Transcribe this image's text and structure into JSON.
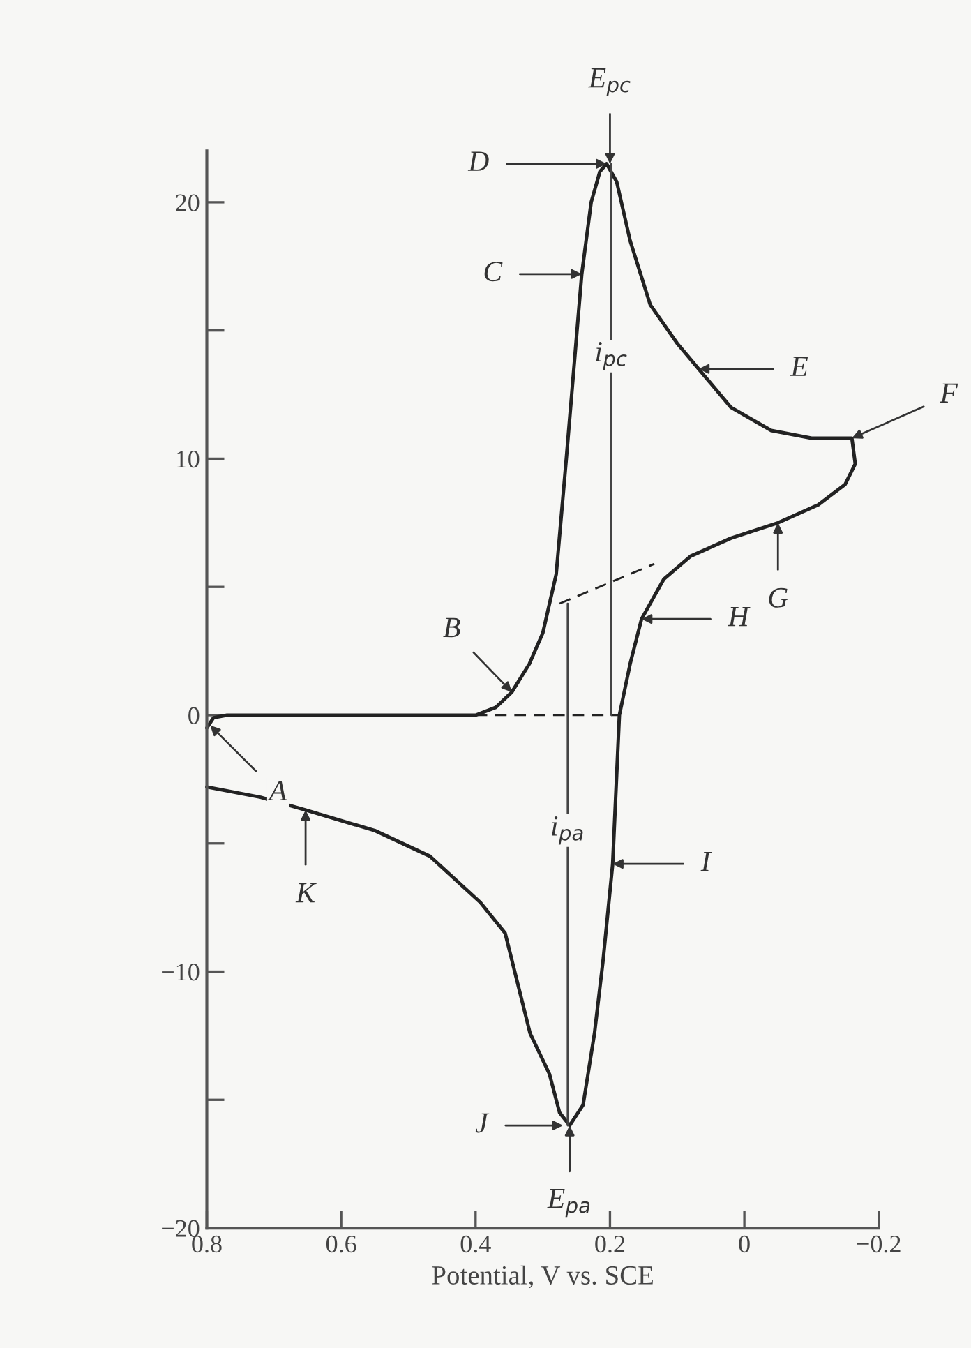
{
  "chart_data": {
    "type": "line",
    "xlabel": "Potential, V vs. SCE",
    "xlim": [
      0.8,
      -0.2
    ],
    "xticks": [
      0.8,
      0.6,
      0.4,
      0.2,
      0,
      {
        "value": -0.2,
        "label": "−0.2"
      }
    ],
    "ylim": [
      -20,
      22
    ],
    "yticks": [
      {
        "value": -20,
        "label": "−20"
      },
      {
        "value": -15,
        "label": null
      },
      {
        "value": -10,
        "label": "−10"
      },
      {
        "value": -5,
        "label": null
      },
      0,
      {
        "value": 5,
        "label": null
      },
      10,
      {
        "value": 15,
        "label": null
      },
      20
    ],
    "grid": false,
    "legend": false,
    "series": [
      {
        "color": "#222222",
        "line_style": "solid",
        "x": [
          0.8,
          0.79,
          0.77,
          0.6,
          0.4,
          0.37,
          0.346,
          0.32,
          0.3,
          0.28,
          0.265,
          0.242,
          0.228,
          0.215,
          0.205,
          0.19,
          0.17,
          0.14,
          0.1,
          0.068,
          0.02,
          -0.04,
          -0.1,
          -0.16,
          -0.165,
          -0.15,
          -0.11,
          -0.05,
          0.02,
          0.08,
          0.12,
          0.153,
          0.17,
          0.186,
          0.196,
          0.21,
          0.223,
          0.24,
          0.26,
          0.275,
          0.29,
          0.319,
          0.356,
          0.393,
          0.468,
          0.55,
          0.653,
          0.72,
          0.8
        ],
        "values": [
          -0.5,
          -0.1,
          0,
          0,
          0,
          0.3,
          0.9,
          2.0,
          3.2,
          5.5,
          10,
          17.2,
          20,
          21.2,
          21.5,
          20.8,
          18.5,
          16,
          14.5,
          13.5,
          12.0,
          11.1,
          10.8,
          10.8,
          9.8,
          9.0,
          8.2,
          7.5,
          6.9,
          6.2,
          5.3,
          3.75,
          2.0,
          0,
          -5.8,
          -9.5,
          -12.4,
          -15.2,
          -16,
          -15.5,
          -14,
          -12.4,
          -8.5,
          -7.3,
          -5.5,
          -4.5,
          -3.7,
          -3.2,
          -2.8
        ]
      },
      {
        "color": "#222222",
        "line_style": "dashed",
        "x": [
          0.4,
          0.186
        ],
        "values": [
          0,
          0
        ]
      },
      {
        "color": "#222222",
        "line_style": "dashed",
        "x": [
          0.275,
          0.134
        ],
        "values": [
          4.35,
          5.9
        ]
      },
      {
        "color": "#444444",
        "line_style": "solid",
        "x": [
          0.198,
          0.198
        ],
        "values": [
          0,
          21.5
        ]
      },
      {
        "color": "#444444",
        "line_style": "solid",
        "x": [
          0.263,
          0.263
        ],
        "values": [
          4.35,
          -16
        ]
      }
    ],
    "annotations": [
      {
        "text": "A",
        "x": 0.795,
        "y": -0.4
      },
      {
        "text": "B",
        "x": 0.346,
        "y": 0.9
      },
      {
        "text": "C",
        "x": 0.242,
        "y": 17.2
      },
      {
        "text": "D",
        "x": 0.205,
        "y": 21.5
      },
      {
        "text": "E",
        "x": 0.068,
        "y": 13.5
      },
      {
        "text": "F",
        "x": -0.16,
        "y": 10.8
      },
      {
        "text": "G",
        "x": -0.05,
        "y": 7.5
      },
      {
        "text": "H",
        "x": 0.153,
        "y": 3.75
      },
      {
        "text": "I",
        "x": 0.196,
        "y": -5.8
      },
      {
        "text": "J",
        "x": 0.27,
        "y": -16
      },
      {
        "text": "K",
        "x": 0.653,
        "y": -3.7
      },
      {
        "text": "E$_{pc}$",
        "x": 0.2,
        "y": 21.5
      },
      {
        "text": "E$_{pa}$",
        "x": 0.26,
        "y": -16
      },
      {
        "text": "i$_{pc}$",
        "x": 0.198,
        "y": 14
      },
      {
        "text": "i$_{pa}$",
        "x": 0.263,
        "y": -4.5
      }
    ]
  }
}
